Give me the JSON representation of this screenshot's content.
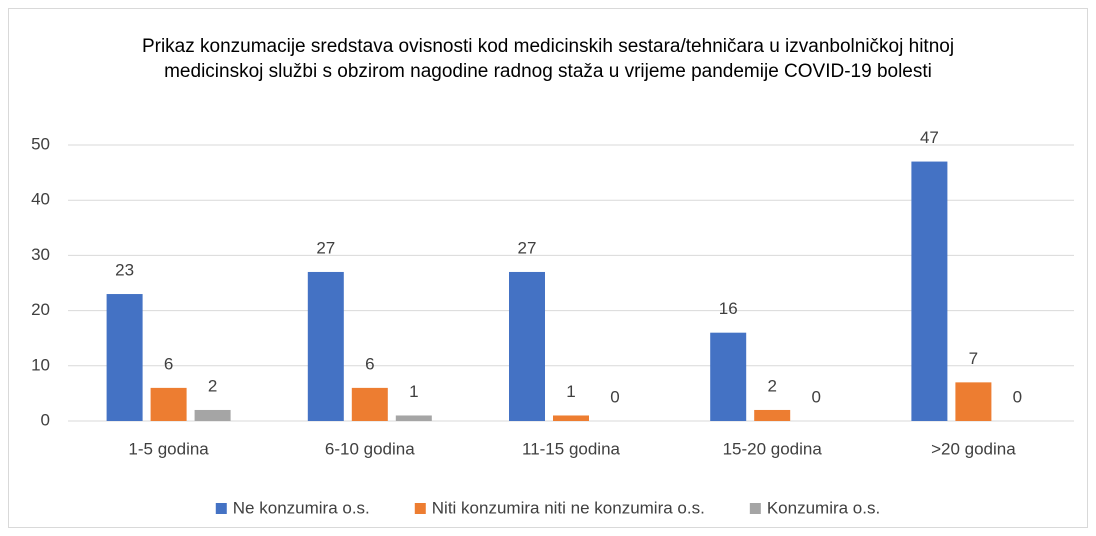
{
  "chart_data": {
    "type": "bar",
    "title": "Prikaz konzumacije sredstava ovisnosti kod medicinskih sestara/tehničara u izvanbolničkoj hitnoj medicinskoj službi s obzirom nagodine radnog staža u vrijeme pandemije COVID-19 bolesti",
    "categories": [
      "1-5 godina",
      "6-10 godina",
      "11-15 godina",
      "15-20 godina",
      ">20 godina"
    ],
    "series": [
      {
        "name": "Ne konzumira o.s.",
        "color": "#4472c4",
        "values": [
          23,
          27,
          27,
          16,
          47
        ]
      },
      {
        "name": "Niti konzumira niti ne konzumira o.s.",
        "color": "#ed7d31",
        "values": [
          6,
          6,
          1,
          2,
          7
        ]
      },
      {
        "name": "Konzumira o.s.",
        "color": "#a5a5a5",
        "values": [
          2,
          1,
          0,
          0,
          0
        ]
      }
    ],
    "ylim": [
      0,
      50
    ],
    "yticks": [
      0,
      10,
      20,
      30,
      40,
      50
    ],
    "grid": true,
    "legend": "bottom"
  }
}
